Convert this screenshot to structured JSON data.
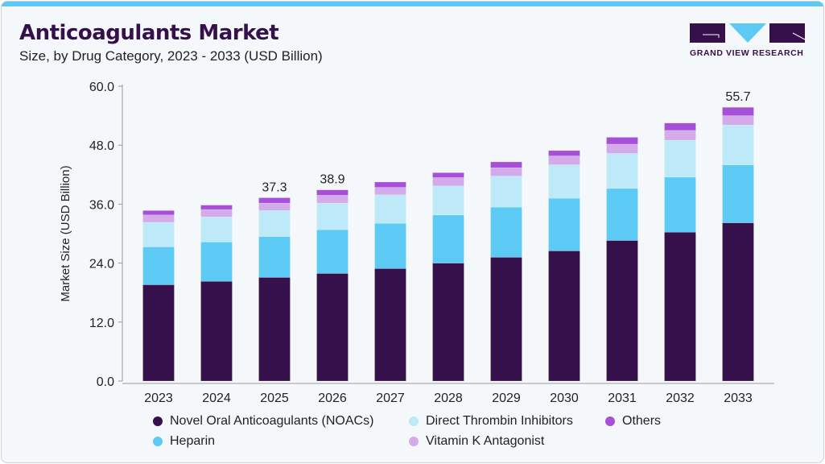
{
  "header": {
    "title": "Anticoagulants Market",
    "subtitle": "Size, by Drug Category, 2023 - 2033 (USD Billion)",
    "logo_text": "GRAND VIEW RESEARCH"
  },
  "chart_data": {
    "type": "bar",
    "stacked": true,
    "title": "Anticoagulants Market",
    "xlabel": "",
    "ylabel": "Market Size (USD Billion)",
    "ylim": [
      0,
      60
    ],
    "yticks": [
      "0.0",
      "12.0",
      "24.0",
      "36.0",
      "48.0",
      "60.0"
    ],
    "categories": [
      "2023",
      "2024",
      "2025",
      "2026",
      "2027",
      "2028",
      "2029",
      "2030",
      "2031",
      "2032",
      "2033"
    ],
    "series": [
      {
        "name": "Novel Oral Anticoagulants (NOACs)",
        "color": "#36104a",
        "values": [
          19.6,
          20.3,
          21.1,
          21.9,
          22.9,
          24.0,
          25.2,
          26.5,
          28.6,
          30.3,
          32.2
        ]
      },
      {
        "name": "Heparin",
        "color": "#5ccaf5",
        "values": [
          7.7,
          8.0,
          8.3,
          8.9,
          9.2,
          9.8,
          10.2,
          10.7,
          10.6,
          11.2,
          11.8
        ]
      },
      {
        "name": "Direct Thrombin Inhibitors",
        "color": "#bde9f8",
        "values": [
          5.0,
          5.1,
          5.3,
          5.4,
          5.8,
          5.9,
          6.3,
          6.8,
          7.1,
          7.5,
          8.1
        ]
      },
      {
        "name": "Vitamin K Antagonist",
        "color": "#d3aaea",
        "values": [
          1.5,
          1.5,
          1.5,
          1.6,
          1.5,
          1.7,
          1.7,
          1.8,
          1.9,
          2.0,
          1.9
        ]
      },
      {
        "name": "Others",
        "color": "#a64fd8",
        "values": [
          0.9,
          0.9,
          1.1,
          1.1,
          1.1,
          1.0,
          1.2,
          1.1,
          1.4,
          1.5,
          1.7
        ]
      }
    ],
    "data_labels": [
      {
        "category": "2025",
        "text": "37.3"
      },
      {
        "category": "2026",
        "text": "38.9"
      },
      {
        "category": "2033",
        "text": "55.7"
      }
    ],
    "legend": {
      "placement": "bottom"
    },
    "grid": false
  }
}
